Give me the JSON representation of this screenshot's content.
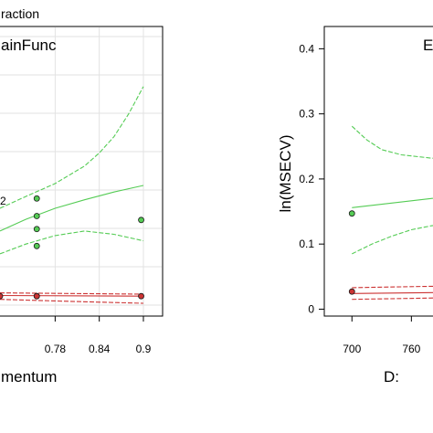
{
  "header_fragment": "raction",
  "chart_data": [
    {
      "type": "scatter",
      "panel_title": "ainFunc",
      "xlabel": "mentum",
      "ylabel": "",
      "xlim": [
        0.705,
        0.905
      ],
      "ylim": [
        -0.005,
        0.43
      ],
      "xticks": [
        0.78,
        0.84,
        0.9
      ],
      "xtick_labels": [
        "0.78",
        "0.84",
        "0.9"
      ],
      "grid": true,
      "series": [
        {
          "color": "#55cc55",
          "fit": {
            "x": [
              0.705,
              0.74,
              0.78,
              0.82,
              0.86,
              0.9
            ],
            "y": [
              0.12,
              0.138,
              0.155,
              0.168,
              0.18,
              0.19
            ]
          },
          "upper": {
            "x": [
              0.705,
              0.74,
              0.78,
              0.82,
              0.84,
              0.86,
              0.88,
              0.9
            ],
            "y": [
              0.155,
              0.173,
              0.193,
              0.22,
              0.24,
              0.265,
              0.3,
              0.342
            ]
          },
          "lower": {
            "x": [
              0.705,
              0.74,
              0.78,
              0.82,
              0.86,
              0.9
            ],
            "y": [
              0.085,
              0.1,
              0.113,
              0.12,
              0.115,
              0.105
            ]
          },
          "points": {
            "x": [
              0.755,
              0.755,
              0.755,
              0.755,
              0.755,
              0.897
            ],
            "y": [
              0.17,
              0.143,
              0.123,
              0.097,
              0.02,
              0.137
            ]
          }
        },
        {
          "color": "#cc3333",
          "fit": {
            "x": [
              0.705,
              0.9
            ],
            "y": [
              0.021,
              0.02
            ]
          },
          "upper": {
            "x": [
              0.705,
              0.8,
              0.9
            ],
            "y": [
              0.025,
              0.024,
              0.023
            ]
          },
          "lower": {
            "x": [
              0.705,
              0.8,
              0.9
            ],
            "y": [
              0.015,
              0.012,
              0.009
            ]
          },
          "points": {
            "x": [
              0.705,
              0.755,
              0.897
            ],
            "y": [
              0.02,
              0.02,
              0.02
            ]
          }
        }
      ],
      "annotation": {
        "text": "2",
        "x": 0.75,
        "y": 0.17
      }
    },
    {
      "type": "scatter",
      "panel_title": "E",
      "xlabel": "D:",
      "ylabel": "ln(MSECV)",
      "xlim": [
        685,
        815
      ],
      "ylim": [
        -0.005,
        0.43
      ],
      "xticks": [
        700,
        760
      ],
      "xtick_labels": [
        "700",
        "760"
      ],
      "yticks": [
        0,
        0.1,
        0.2,
        0.3,
        0.4
      ],
      "ytick_labels": [
        "0",
        "0.1",
        "0.2",
        "0.3",
        "0.4"
      ],
      "grid": false,
      "series": [
        {
          "color": "#55cc55",
          "fit": {
            "x": [
              700,
              740,
              780,
              815
            ],
            "y": [
              0.156,
              0.163,
              0.17,
              0.176
            ]
          },
          "upper": {
            "x": [
              700,
              715,
              730,
              750,
              780,
              815
            ],
            "y": [
              0.281,
              0.26,
              0.245,
              0.237,
              0.232,
              0.23
            ]
          },
          "lower": {
            "x": [
              700,
              720,
              740,
              760,
              780,
              815
            ],
            "y": [
              0.085,
              0.1,
              0.112,
              0.122,
              0.128,
              0.134
            ]
          },
          "points": {
            "x": [
              700
            ],
            "y": [
              0.147
            ]
          }
        },
        {
          "color": "#cc3333",
          "fit": {
            "x": [
              700,
              815
            ],
            "y": [
              0.024,
              0.026
            ]
          },
          "upper": {
            "x": [
              700,
              815
            ],
            "y": [
              0.033,
              0.036
            ]
          },
          "lower": {
            "x": [
              700,
              815
            ],
            "y": [
              0.015,
              0.018
            ]
          },
          "points": {
            "x": [
              700
            ],
            "y": [
              0.027
            ]
          }
        }
      ]
    }
  ]
}
